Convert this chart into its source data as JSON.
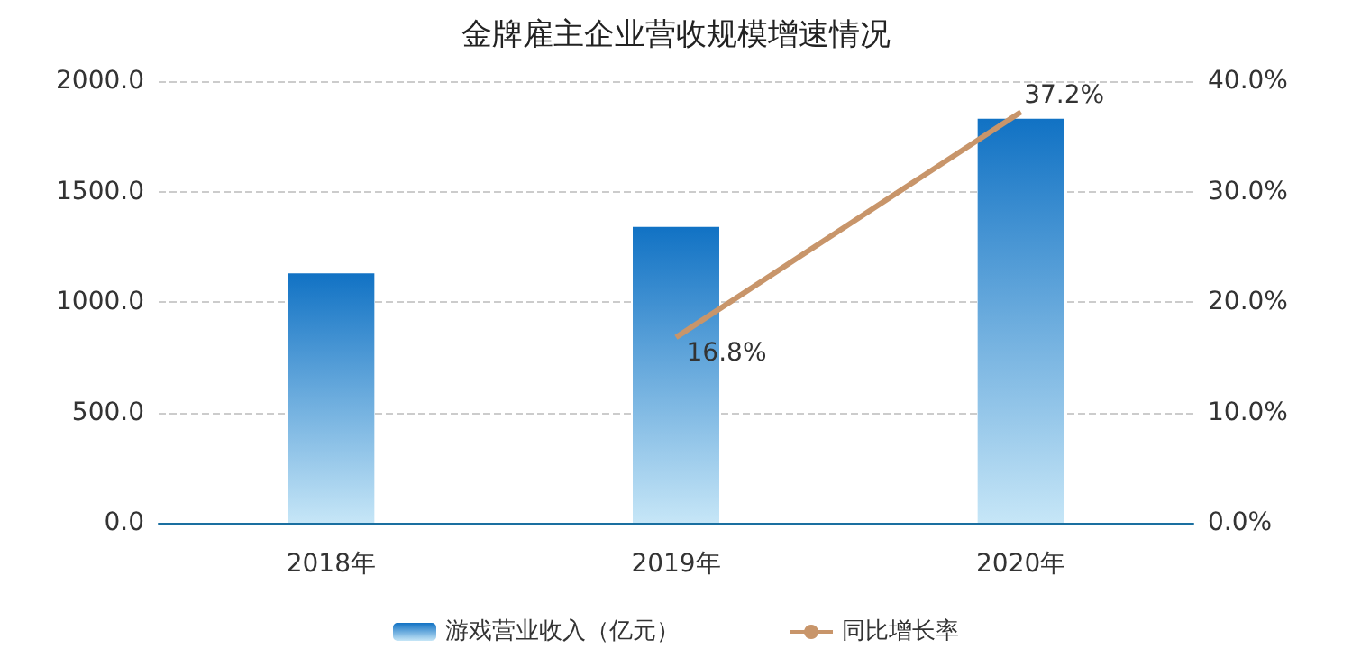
{
  "chart_data": {
    "type": "bar",
    "title": "金牌雇主企业营收规模增速情况",
    "categories": [
      "2018年",
      "2019年",
      "2020年"
    ],
    "series": [
      {
        "name": "游戏营业收入（亿元）",
        "color": "#1172c4",
        "values": [
          1130,
          1340,
          1830
        ]
      },
      {
        "name": "同比增长率",
        "type": "line",
        "axis": "y2",
        "color": "#c8956a",
        "values": [
          null,
          16.8,
          37.2
        ],
        "value_labels": [
          null,
          "16.8%",
          "37.2%"
        ]
      }
    ],
    "ylim": [
      0,
      2000
    ],
    "yticks": [
      {
        "value": 0,
        "label": "0.0"
      },
      {
        "value": 500,
        "label": "500.0"
      },
      {
        "value": 1000,
        "label": "1000.0"
      },
      {
        "value": 1500,
        "label": "1500.0"
      },
      {
        "value": 2000,
        "label": "2000.0"
      }
    ],
    "y2lim": [
      0,
      40
    ],
    "y2ticks": [
      {
        "value": 0,
        "label": "0.0%"
      },
      {
        "value": 10,
        "label": "10.0%"
      },
      {
        "value": 20,
        "label": "20.0%"
      },
      {
        "value": 30,
        "label": "30.0%"
      },
      {
        "value": 40,
        "label": "40.0%"
      }
    ],
    "grid": "y",
    "legend": "bottom",
    "marker": "none"
  }
}
